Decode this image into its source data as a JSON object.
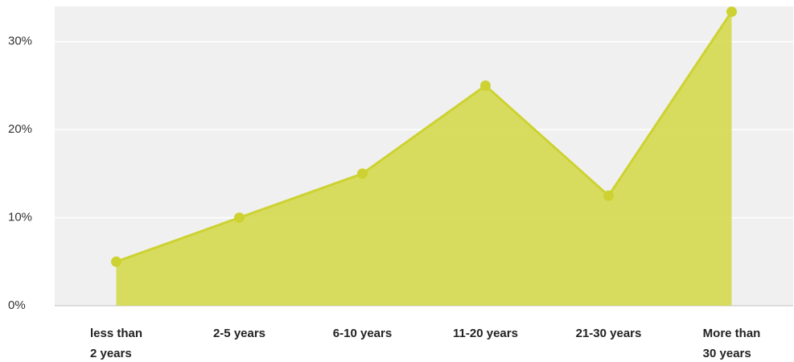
{
  "chart_data": {
    "type": "area",
    "categories": [
      "less than\n2 years",
      "2-5 years",
      "6-10 years",
      "11-20 years",
      "21-30 years",
      "More than\n30 years"
    ],
    "values": [
      5,
      10,
      15,
      25,
      12.5,
      33.4
    ],
    "color": "#d4d94f",
    "line_color": "#cdd232",
    "ylim": [
      0,
      34
    ],
    "yticks": [
      {
        "value": 0,
        "label": "0%"
      },
      {
        "value": 10,
        "label": "10%"
      },
      {
        "value": 20,
        "label": "20%"
      },
      {
        "value": 30,
        "label": "30%"
      }
    ],
    "grid": true
  }
}
